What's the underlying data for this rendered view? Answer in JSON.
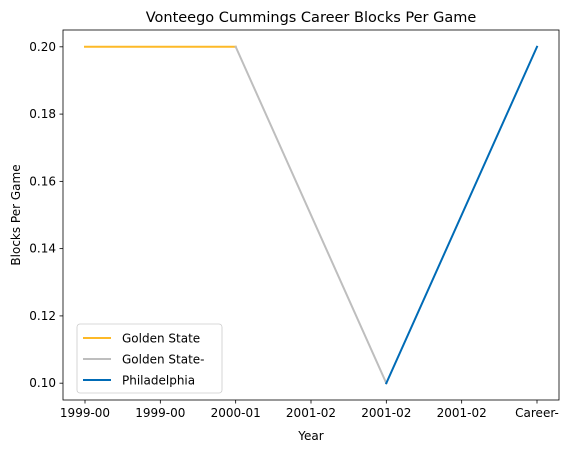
{
  "chart_data": {
    "type": "line",
    "title": "Vonteego Cummings Career Blocks Per Game",
    "xlabel": "Year",
    "ylabel": "Blocks Per Game",
    "categories": [
      "1999-00",
      "1999-00",
      "2000-01",
      "2001-02",
      "2001-02",
      "2001-02",
      "Career-"
    ],
    "ylim": [
      0.095,
      0.205
    ],
    "yticks": [
      "0.10",
      "0.12",
      "0.14",
      "0.16",
      "0.18",
      "0.20"
    ],
    "grid": false,
    "legend_position": "lower left",
    "series": [
      {
        "name": "Golden State",
        "color": "#FDB927",
        "x": [
          0,
          2
        ],
        "values": [
          0.2,
          0.2
        ]
      },
      {
        "name": "Golden State-",
        "color": "#BEBEBE",
        "x": [
          2,
          4
        ],
        "values": [
          0.2,
          0.1
        ]
      },
      {
        "name": "Philadelphia",
        "color": "#006BB6",
        "x": [
          4,
          6
        ],
        "values": [
          0.1,
          0.2
        ]
      }
    ]
  }
}
